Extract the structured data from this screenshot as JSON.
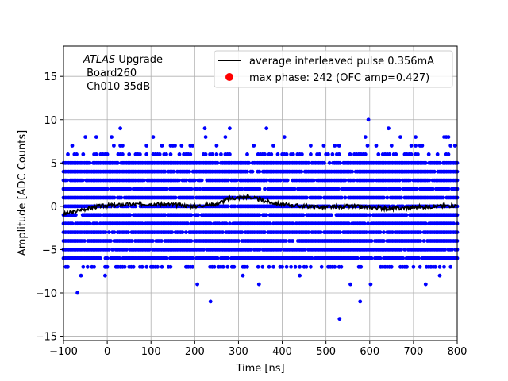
{
  "chart_data": {
    "type": "scatter",
    "xlabel": "Time [ns]",
    "ylabel": "Amplitude [ADC Counts]",
    "xlim": [
      -100,
      800
    ],
    "ylim": [
      -15.5,
      18.5
    ],
    "x_ticks": [
      -100,
      0,
      100,
      200,
      300,
      400,
      500,
      600,
      700,
      800
    ],
    "y_ticks": [
      -15,
      -10,
      -5,
      0,
      5,
      10,
      15
    ],
    "grid": true,
    "annotation": {
      "italic": "ATLAS",
      "line1_rest": " Upgrade",
      "line2": " Board260",
      "line3": " Ch010 35dB"
    },
    "legend": {
      "placement": "top-right",
      "entries": [
        {
          "label": "average interleaved pulse 0.356mA",
          "marker": "line",
          "color": "#000000"
        },
        {
          "label": "max phase: 242 (OFC amp=0.427)",
          "marker": "dot",
          "color": "#ff0000"
        }
      ]
    },
    "series": [
      {
        "kind": "scatter",
        "color": "#0000ff",
        "dense_levels": [
          -6,
          -5,
          -4,
          -3,
          -2,
          -1,
          0,
          1,
          2,
          3,
          4,
          5
        ],
        "sparse_levels": [
          6,
          7,
          8,
          -7
        ],
        "outliers": [
          {
            "x": -68,
            "y": -10
          },
          {
            "x": 597,
            "y": 10
          },
          {
            "x": 531,
            "y": -13
          },
          {
            "x": 236,
            "y": -11
          },
          {
            "x": 578,
            "y": -11
          },
          {
            "x": 206,
            "y": -9
          },
          {
            "x": 347,
            "y": -9
          },
          {
            "x": 556,
            "y": -9
          },
          {
            "x": 602,
            "y": -9
          },
          {
            "x": 728,
            "y": -9
          },
          {
            "x": 223,
            "y": 9
          },
          {
            "x": 280,
            "y": 9
          },
          {
            "x": 364,
            "y": 9
          },
          {
            "x": 30,
            "y": 9
          },
          {
            "x": 643,
            "y": 9
          },
          {
            "x": -60,
            "y": -8
          },
          {
            "x": -5,
            "y": -8
          },
          {
            "x": 310,
            "y": -8
          },
          {
            "x": 440,
            "y": -8
          },
          {
            "x": 760,
            "y": -8
          }
        ]
      },
      {
        "kind": "line",
        "color": "#000000",
        "points": [
          [
            -100,
            -0.9
          ],
          [
            -80,
            -0.7
          ],
          [
            -60,
            -0.4
          ],
          [
            -40,
            -0.2
          ],
          [
            -20,
            0.0
          ],
          [
            0,
            0.1
          ],
          [
            50,
            0.2
          ],
          [
            100,
            0.3
          ],
          [
            150,
            0.2
          ],
          [
            200,
            0.0
          ],
          [
            250,
            0.3
          ],
          [
            280,
            0.9
          ],
          [
            300,
            1.0
          ],
          [
            320,
            1.1
          ],
          [
            340,
            0.9
          ],
          [
            360,
            0.6
          ],
          [
            380,
            0.4
          ],
          [
            400,
            0.2
          ],
          [
            450,
            0.0
          ],
          [
            500,
            -0.1
          ],
          [
            550,
            0.0
          ],
          [
            600,
            -0.1
          ],
          [
            650,
            -0.3
          ],
          [
            700,
            -0.1
          ],
          [
            750,
            0.0
          ],
          [
            800,
            0.1
          ]
        ]
      }
    ]
  }
}
